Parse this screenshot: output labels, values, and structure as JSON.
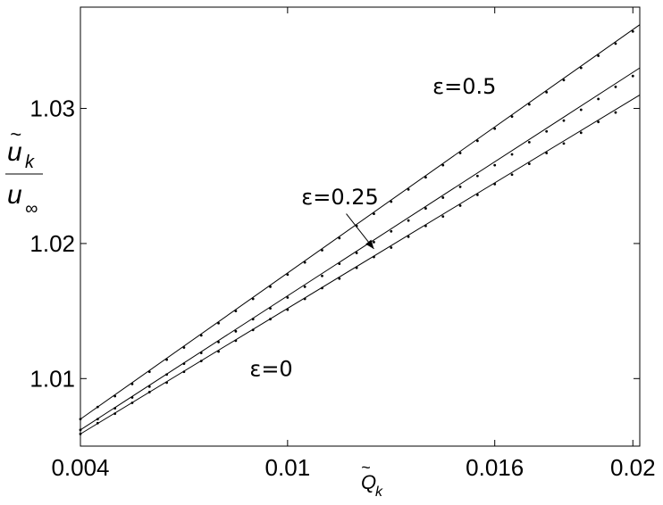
{
  "chart_data": {
    "type": "line",
    "xlim": [
      0.004,
      0.0202
    ],
    "ylim": [
      1.005,
      1.0375
    ],
    "x_ticks": [
      0.004,
      0.01,
      0.016,
      0.02
    ],
    "x_tick_labels": [
      "0.004",
      "0.01",
      "0.016",
      "0.02"
    ],
    "y_ticks": [
      1.01,
      1.02,
      1.03
    ],
    "y_tick_labels": [
      "1.01",
      "1.02",
      "1.03"
    ],
    "xlabel": {
      "main": "Q",
      "accent": "~",
      "sub": "k"
    },
    "ylabel": {
      "num_main": "u",
      "num_accent": "~",
      "num_sub": "k",
      "den_main": "u",
      "den_sub": "∞"
    },
    "grid": false,
    "series": [
      {
        "name": "ε=0.5",
        "line_x": [
          0.004,
          0.0202
        ],
        "line_y": [
          1.007,
          1.0362
        ],
        "dots_x": [
          0.004,
          0.0045,
          0.005,
          0.0055,
          0.006,
          0.0065,
          0.007,
          0.0075,
          0.008,
          0.0085,
          0.009,
          0.0095,
          0.01,
          0.0105,
          0.011,
          0.0115,
          0.012,
          0.0125,
          0.013,
          0.0135,
          0.014,
          0.0145,
          0.015,
          0.0155,
          0.016,
          0.0165,
          0.017,
          0.0175,
          0.018,
          0.0185,
          0.019,
          0.0195,
          0.02
        ],
        "dots_y": [
          1.007,
          1.0079,
          1.0087,
          1.0096,
          1.0105,
          1.0114,
          1.0123,
          1.0132,
          1.0141,
          1.015,
          1.0159,
          1.0168,
          1.0177,
          1.0186,
          1.0195,
          1.0204,
          1.0213,
          1.0222,
          1.0231,
          1.024,
          1.0249,
          1.0258,
          1.0267,
          1.0276,
          1.0285,
          1.0294,
          1.0303,
          1.0312,
          1.0321,
          1.033,
          1.0339,
          1.0348,
          1.0357
        ]
      },
      {
        "name": "ε=0.25",
        "line_x": [
          0.004,
          0.0202
        ],
        "line_y": [
          1.0062,
          1.033
        ],
        "dots_x": [
          0.004,
          0.0045,
          0.005,
          0.0055,
          0.006,
          0.0065,
          0.007,
          0.0075,
          0.008,
          0.0085,
          0.009,
          0.0095,
          0.01,
          0.0105,
          0.011,
          0.0115,
          0.012,
          0.0125,
          0.013,
          0.0135,
          0.014,
          0.0145,
          0.015,
          0.0155,
          0.016,
          0.0165,
          0.017,
          0.0175,
          0.018,
          0.0185,
          0.019,
          0.0195,
          0.02
        ],
        "dots_y": [
          1.0062,
          1.007,
          1.0078,
          1.0086,
          1.0094,
          1.0103,
          1.0111,
          1.0119,
          1.0127,
          1.0135,
          1.0144,
          1.0152,
          1.016,
          1.0168,
          1.0176,
          1.0185,
          1.0193,
          1.0201,
          1.0209,
          1.0217,
          1.0226,
          1.0234,
          1.0242,
          1.025,
          1.0258,
          1.0266,
          1.0275,
          1.0283,
          1.0291,
          1.0299,
          1.0307,
          1.0316,
          1.0324
        ]
      },
      {
        "name": "ε=0",
        "line_x": [
          0.004,
          0.0202
        ],
        "line_y": [
          1.0059,
          1.031
        ],
        "dots_x": [
          0.004,
          0.0045,
          0.005,
          0.0055,
          0.006,
          0.0065,
          0.007,
          0.0075,
          0.008,
          0.0085,
          0.009,
          0.0095,
          0.01,
          0.0105,
          0.011,
          0.0115,
          0.012,
          0.0125,
          0.013,
          0.0135,
          0.014,
          0.0145,
          0.015,
          0.0155,
          0.016,
          0.0165,
          0.017,
          0.0175,
          0.018,
          0.0185,
          0.019,
          0.0195
        ],
        "dots_y": [
          1.0059,
          1.0067,
          1.0074,
          1.0082,
          1.009,
          1.0097,
          1.0105,
          1.0113,
          1.012,
          1.0128,
          1.0136,
          1.0144,
          1.0151,
          1.0159,
          1.0167,
          1.0174,
          1.0182,
          1.019,
          1.0197,
          1.0205,
          1.0213,
          1.022,
          1.0228,
          1.0236,
          1.0244,
          1.0251,
          1.0259,
          1.0267,
          1.0274,
          1.0282,
          1.029,
          1.0297
        ]
      }
    ],
    "annotations": [
      {
        "text": "ε=0.5",
        "x": 0.0142,
        "y": 1.0311
      },
      {
        "text": "ε=0.25",
        "x": 0.0104,
        "y": 1.0229
      },
      {
        "text": "ε=0",
        "x": 0.0089,
        "y": 1.0102
      }
    ],
    "arrow": {
      "from": [
        0.0117,
        1.0222
      ],
      "to": [
        0.0125,
        1.0196
      ]
    }
  }
}
